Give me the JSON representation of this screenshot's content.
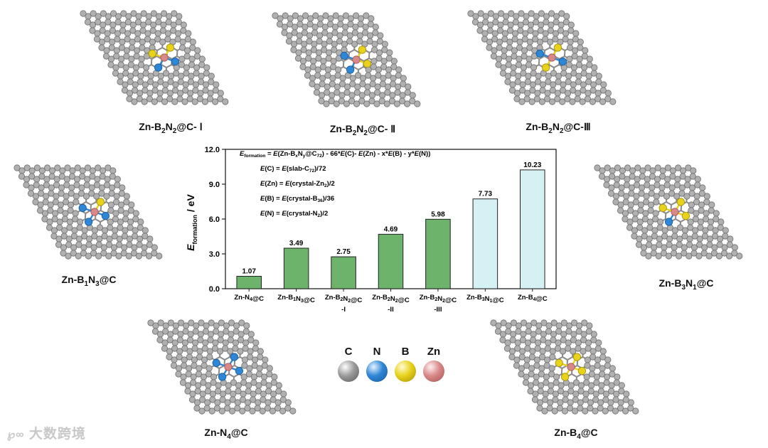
{
  "structures": [
    {
      "id": "Zn-B2N2@C-I",
      "label_parts": [
        "Zn-B",
        "2",
        "N",
        "2",
        "@C- Ⅰ"
      ],
      "neighbors": [
        {
          "el": "B",
          "dir": [
            0.6,
            -1.0
          ]
        },
        {
          "el": "B",
          "dir": [
            -1.2,
            -0.4
          ]
        },
        {
          "el": "N",
          "dir": [
            1.1,
            0.4
          ]
        },
        {
          "el": "N",
          "dir": [
            -0.6,
            1.0
          ]
        }
      ]
    },
    {
      "id": "Zn-B2N2@C-II",
      "label_parts": [
        "Zn-B",
        "2",
        "N",
        "2",
        "@C- Ⅱ"
      ],
      "neighbors": [
        {
          "el": "B",
          "dir": [
            0.6,
            -1.0
          ]
        },
        {
          "el": "N",
          "dir": [
            -1.2,
            -0.4
          ]
        },
        {
          "el": "B",
          "dir": [
            1.1,
            0.4
          ]
        },
        {
          "el": "N",
          "dir": [
            -0.6,
            1.0
          ]
        }
      ]
    },
    {
      "id": "Zn-B2N2@C-III",
      "label_parts": [
        "Zn-B",
        "2",
        "N",
        "2",
        "@C-Ⅲ"
      ],
      "neighbors": [
        {
          "el": "B",
          "dir": [
            0.6,
            -1.0
          ]
        },
        {
          "el": "N",
          "dir": [
            -1.2,
            -0.4
          ]
        },
        {
          "el": "N",
          "dir": [
            1.1,
            0.4
          ]
        },
        {
          "el": "B",
          "dir": [
            -0.6,
            1.0
          ]
        }
      ]
    },
    {
      "id": "Zn-B1N3@C",
      "label_parts": [
        "Zn-B",
        "1",
        "N",
        "3",
        "@C"
      ],
      "neighbors": [
        {
          "el": "B",
          "dir": [
            0.6,
            -1.0
          ]
        },
        {
          "el": "N",
          "dir": [
            -1.2,
            -0.4
          ]
        },
        {
          "el": "N",
          "dir": [
            1.1,
            0.4
          ]
        },
        {
          "el": "N",
          "dir": [
            -0.6,
            1.0
          ]
        }
      ]
    },
    {
      "id": "Zn-B3N1@C",
      "label_parts": [
        "Zn-B",
        "3",
        "N",
        "1",
        "@C"
      ],
      "neighbors": [
        {
          "el": "B",
          "dir": [
            0.6,
            -1.0
          ]
        },
        {
          "el": "B",
          "dir": [
            -1.2,
            -0.4
          ]
        },
        {
          "el": "B",
          "dir": [
            1.1,
            0.4
          ]
        },
        {
          "el": "N",
          "dir": [
            -0.6,
            1.0
          ]
        }
      ]
    },
    {
      "id": "Zn-N4@C",
      "label_parts": [
        "Zn-N",
        "4",
        "@C",
        "",
        ""
      ],
      "neighbors": [
        {
          "el": "N",
          "dir": [
            0.6,
            -1.0
          ]
        },
        {
          "el": "N",
          "dir": [
            -1.2,
            -0.4
          ]
        },
        {
          "el": "N",
          "dir": [
            1.1,
            0.4
          ]
        },
        {
          "el": "N",
          "dir": [
            -0.6,
            1.0
          ]
        }
      ]
    },
    {
      "id": "Zn-B4@C",
      "label_parts": [
        "Zn-B",
        "4",
        "@C",
        "",
        ""
      ],
      "neighbors": [
        {
          "el": "B",
          "dir": [
            0.6,
            -1.0
          ]
        },
        {
          "el": "B",
          "dir": [
            -1.2,
            -0.4
          ]
        },
        {
          "el": "B",
          "dir": [
            1.1,
            0.4
          ]
        },
        {
          "el": "B",
          "dir": [
            -0.6,
            1.0
          ]
        }
      ]
    }
  ],
  "chart_data": {
    "type": "bar",
    "ylabel_main": "E",
    "ylabel_sub": "formation",
    "ylabel_unit": " / eV",
    "ylim": [
      0,
      12
    ],
    "yticks": [
      "0.0",
      "3.0",
      "6.0",
      "9.0",
      "12.0"
    ],
    "categories": [
      {
        "line1": "Zn-N4@C",
        "line2": ""
      },
      {
        "line1": "Zn-B1N3@C",
        "line2": ""
      },
      {
        "line1": "Zn-B2N2@C",
        "line2": "-I"
      },
      {
        "line1": "Zn-B2N2@C",
        "line2": "-II"
      },
      {
        "line1": "Zn-B2N2@C",
        "line2": "-III"
      },
      {
        "line1": "Zn-B3N1@C",
        "line2": ""
      },
      {
        "line1": "Zn-B4@C",
        "line2": ""
      }
    ],
    "values": [
      1.07,
      3.49,
      2.75,
      4.69,
      5.98,
      7.73,
      10.23
    ],
    "value_labels": [
      "1.07",
      "3.49",
      "2.75",
      "4.69",
      "5.98",
      "7.73",
      "10.23"
    ],
    "bar_colors": [
      "#6db36b",
      "#6db36b",
      "#6db36b",
      "#6db36b",
      "#6db36b",
      "#d6f1f4",
      "#d6f1f4"
    ],
    "equations": [
      "E_formation = E(Zn-BxNy@C72) - 66*E(C)- E(Zn) - x*E(B) - y*E(N))",
      "E(C) = E(slab-C72)/72",
      "E(Zn) = E(crystal-Zn2)/2",
      "E(B) = E(crystal-B36)/36",
      "E(N) = E(crystal-N2)/2"
    ]
  },
  "legend": [
    {
      "symbol": "C",
      "color": "#9a9a9a"
    },
    {
      "symbol": "N",
      "color": "#2e86d6"
    },
    {
      "symbol": "B",
      "color": "#e8d21a"
    },
    {
      "symbol": "Zn",
      "color": "#d98888"
    }
  ],
  "watermark": "大数跨境"
}
